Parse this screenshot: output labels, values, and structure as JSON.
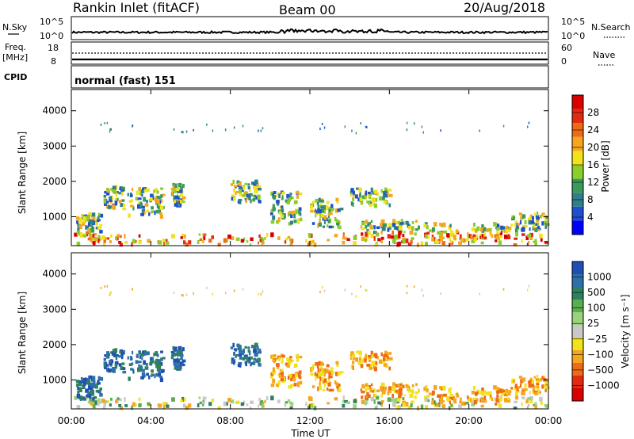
{
  "header": {
    "station": "Rankin Inlet (fitACF)",
    "beam": "Beam 00",
    "date": "20/Aug/2018"
  },
  "nsky_panel": {
    "left_label": "N.Sky",
    "right_label": "N.Search",
    "tick_top": "10^5",
    "tick_bottom": "10^0"
  },
  "freq_panel": {
    "left_label_top": "Freq.",
    "left_label_unit": "[MHz]",
    "left_tick_top": "18",
    "left_tick_bottom": "8",
    "right_label": "Nave",
    "right_tick_top": "60",
    "right_tick_bottom": "0"
  },
  "cpid": {
    "label": "CPID",
    "mode": "normal (fast) 151"
  },
  "power_panel": {
    "ylabel": "Slant Range [km]",
    "yticks": [
      "1000",
      "2000",
      "3000",
      "4000"
    ],
    "colorbar_label": "Power [dB]",
    "colorbar_ticks": [
      "4",
      "8",
      "12",
      "16",
      "20",
      "24",
      "28"
    ],
    "colors": [
      "#0000ff",
      "#1e4fd0",
      "#2f7f8a",
      "#3a9a5a",
      "#8ccd2a",
      "#f2e21c",
      "#f5a61e",
      "#ee6a14",
      "#e22a10",
      "#d80000"
    ]
  },
  "velocity_panel": {
    "ylabel": "Slant Range [km]",
    "yticks": [
      "1000",
      "2000",
      "3000",
      "4000"
    ],
    "colorbar_label": "Velocity [m s⁻¹]",
    "colorbar_ticks": [
      "1000",
      "500",
      "100",
      "25",
      "−25",
      "−100",
      "−500",
      "−1000"
    ],
    "colors": [
      "#1f4fb4",
      "#2f6fa8",
      "#2e8060",
      "#5aae50",
      "#9ad37c",
      "#c8c8c8",
      "#f2e21c",
      "#f5a61e",
      "#ee6a14",
      "#e22a10",
      "#d80000"
    ]
  },
  "xaxis": {
    "ticks": [
      "00:00",
      "04:00",
      "08:00",
      "12:00",
      "16:00",
      "20:00",
      "00:00"
    ],
    "label": "Time UT"
  },
  "chart_data": {
    "type": "heatmap",
    "xlabel": "Time UT",
    "ylabel": "Slant Range [km]",
    "xlim_hours": [
      0,
      24
    ],
    "ylim_km": [
      180,
      4600
    ],
    "panels": [
      "N.Sky / N.Search",
      "Freq. / Nave",
      "CPID",
      "Power [dB]",
      "Velocity [m s⁻¹]"
    ],
    "power_range_db": [
      0,
      30
    ],
    "velocity_range_ms": [
      -1000,
      1000
    ],
    "scatter_regions": [
      {
        "t0": 0.0,
        "t1": 24.0,
        "r0": 200,
        "r1": 500
      },
      {
        "t0": 0.2,
        "t1": 1.5,
        "r0": 450,
        "r1": 1100
      },
      {
        "t0": 1.6,
        "t1": 2.6,
        "r0": 1200,
        "r1": 1850
      },
      {
        "t0": 2.8,
        "t1": 4.6,
        "r0": 1000,
        "r1": 1800
      },
      {
        "t0": 5.0,
        "t1": 5.6,
        "r0": 1300,
        "r1": 1900
      },
      {
        "t0": 8.0,
        "t1": 9.5,
        "r0": 1400,
        "r1": 2000
      },
      {
        "t0": 10.0,
        "t1": 11.5,
        "r0": 800,
        "r1": 1700
      },
      {
        "t0": 12.0,
        "t1": 13.5,
        "r0": 700,
        "r1": 1500
      },
      {
        "t0": 14.0,
        "t1": 16.0,
        "r0": 1300,
        "r1": 1800
      },
      {
        "t0": 14.5,
        "t1": 18.0,
        "r0": 500,
        "r1": 900
      },
      {
        "t0": 18.0,
        "t1": 22.0,
        "r0": 300,
        "r1": 800
      },
      {
        "t0": 22.0,
        "t1": 24.0,
        "r0": 600,
        "r1": 1100
      }
    ]
  }
}
